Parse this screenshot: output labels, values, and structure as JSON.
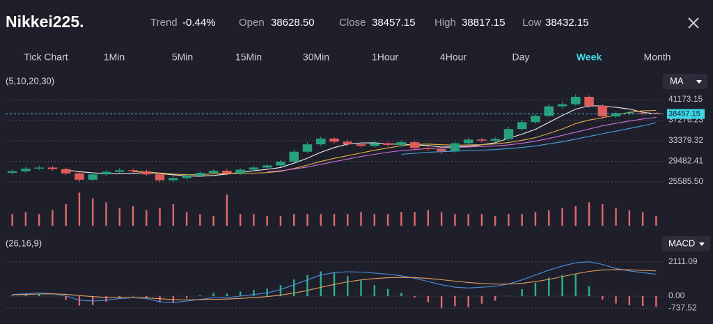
{
  "header": {
    "title": "Nikkei225.",
    "stats": [
      {
        "label": "Trend",
        "value": "-0.44%"
      },
      {
        "label": "Open",
        "value": "38628.50"
      },
      {
        "label": "Close",
        "value": "38457.15"
      },
      {
        "label": "High",
        "value": "38817.15"
      },
      {
        "label": "Low",
        "value": "38432.15"
      }
    ]
  },
  "timeframes": [
    "Tick Chart",
    "1Min",
    "5Min",
    "15Min",
    "30Min",
    "1Hour",
    "4Hour",
    "Day",
    "Week",
    "Month"
  ],
  "active_timeframe": "Week",
  "chart_data": [
    {
      "type": "candlestick",
      "label": "(5,10,20,30)",
      "indicator": "MA",
      "up_color": "#26a17b",
      "down_color": "#e25b5b",
      "open": [
        27300,
        27600,
        28100,
        28300,
        28000,
        27200,
        26000,
        27000,
        27500,
        27800,
        27600,
        27000,
        25900,
        26300,
        26800,
        27300,
        27700,
        27200,
        27900,
        28300,
        28700,
        29400,
        31300,
        32700,
        33800,
        33200,
        32700,
        32400,
        32900,
        32600,
        33100,
        32000,
        31800,
        31400,
        32900,
        33600,
        33400,
        33700,
        35600,
        36900,
        38100,
        39900,
        40300,
        41700,
        40000,
        38000,
        38600,
        38700,
        38628.5
      ],
      "high": [
        27900,
        28500,
        28700,
        28600,
        28300,
        27500,
        27400,
        27800,
        28200,
        28100,
        27900,
        27300,
        26700,
        27100,
        27600,
        28000,
        28100,
        28200,
        28600,
        29000,
        29800,
        31700,
        33100,
        34200,
        34100,
        33600,
        33100,
        33300,
        33200,
        33500,
        33400,
        32400,
        32300,
        33200,
        34000,
        33900,
        34100,
        36000,
        37300,
        38500,
        40400,
        40800,
        42200,
        42000,
        40300,
        39000,
        39100,
        39000,
        38817.15
      ],
      "low": [
        27000,
        27300,
        27800,
        27700,
        26900,
        25600,
        25700,
        26700,
        27200,
        27300,
        26700,
        25500,
        25600,
        26000,
        26500,
        27000,
        26800,
        26900,
        27600,
        28000,
        28400,
        29100,
        31000,
        32400,
        32800,
        32300,
        32000,
        32100,
        32200,
        32300,
        31600,
        31400,
        30800,
        31100,
        32600,
        33000,
        33100,
        33400,
        35300,
        36600,
        37800,
        39500,
        40000,
        39600,
        37500,
        37700,
        38200,
        38200,
        38432.15
      ],
      "close": [
        27600,
        28100,
        28300,
        28000,
        27200,
        26000,
        27000,
        27500,
        27800,
        27600,
        27000,
        25900,
        26300,
        26800,
        27300,
        27700,
        27200,
        27900,
        28300,
        28700,
        29400,
        31300,
        32700,
        33800,
        33200,
        32700,
        32400,
        32900,
        32600,
        33100,
        32000,
        31800,
        31400,
        32900,
        33600,
        33400,
        33700,
        35600,
        36900,
        38100,
        39900,
        40300,
        41700,
        40000,
        38000,
        38600,
        38700,
        38600,
        38457.15
      ],
      "series": [
        {
          "color": "#f2f2f2",
          "values": [
            null,
            null,
            null,
            null,
            27840,
            27520,
            27300,
            27140,
            27100,
            27180,
            27380,
            27160,
            26920,
            26720,
            26660,
            26800,
            27060,
            27380,
            27680,
            27960,
            28300,
            29120,
            30080,
            31180,
            32080,
            32740,
            32960,
            33000,
            32760,
            32740,
            32600,
            32480,
            32180,
            32240,
            32340,
            32620,
            33000,
            33840,
            34640,
            35540,
            36840,
            38160,
            39380,
            40000,
            39980,
            39720,
            39400,
            38780,
            38471
          ]
        },
        {
          "color": "#e8b04a",
          "values": [
            null,
            null,
            null,
            null,
            null,
            null,
            null,
            null,
            null,
            27530,
            27470,
            27260,
            27060,
            26940,
            26950,
            27120,
            27140,
            27180,
            27230,
            27340,
            27580,
            28120,
            28760,
            29460,
            30050,
            30550,
            31070,
            31570,
            32000,
            32440,
            32700,
            32750,
            32620,
            32530,
            32570,
            32640,
            32770,
            33040,
            33470,
            33970,
            34760,
            35610,
            36640,
            37300,
            37740,
            38260,
            38760,
            39050,
            39120
          ]
        },
        {
          "color": "#c86fd8",
          "values": [
            null,
            null,
            null,
            null,
            null,
            null,
            null,
            null,
            null,
            null,
            null,
            null,
            null,
            null,
            null,
            null,
            null,
            null,
            null,
            27500,
            27700,
            28000,
            28400,
            28900,
            29400,
            29900,
            30400,
            30800,
            31200,
            31500,
            31700,
            31900,
            32000,
            32100,
            32200,
            32300,
            32400,
            32600,
            32900,
            33300,
            33800,
            34400,
            35000,
            35600,
            36200,
            36700,
            37100,
            37500,
            37800
          ]
        },
        {
          "color": "#4aa3e0",
          "values": [
            null,
            null,
            null,
            null,
            null,
            null,
            null,
            null,
            null,
            null,
            null,
            null,
            null,
            null,
            null,
            null,
            null,
            null,
            null,
            null,
            null,
            null,
            null,
            null,
            null,
            null,
            null,
            null,
            null,
            30800,
            31000,
            31200,
            31300,
            31400,
            31500,
            31600,
            31700,
            31900,
            32100,
            32400,
            32800,
            33200,
            33700,
            34200,
            34700,
            35200,
            35700,
            36200,
            36800
          ]
        }
      ],
      "last": 38457.15,
      "last_color": "#3fd6e6",
      "ylim": [
        24660,
        43155
      ],
      "yticks": [
        41173.15,
        37276.23,
        33379.32,
        29482.41,
        {
          "value": 25585.5,
          "label": "25585.50"
        }
      ],
      "grid": true
    },
    {
      "type": "bar",
      "color": "#e06a6a",
      "values": [
        30,
        35,
        30,
        40,
        55,
        85,
        70,
        60,
        45,
        50,
        40,
        45,
        55,
        35,
        30,
        25,
        80,
        30,
        30,
        25,
        25,
        30,
        30,
        30,
        30,
        30,
        35,
        30,
        30,
        35,
        35,
        40,
        35,
        30,
        30,
        30,
        25,
        30,
        30,
        35,
        40,
        45,
        50,
        60,
        55,
        45,
        40,
        35,
        25
      ],
      "ylim": [
        0,
        100
      ]
    },
    {
      "type": "macd",
      "label": "(26,16,9)",
      "indicator": "MACD",
      "series": [
        {
          "color": "#4a8fe0",
          "values": [
            100,
            150,
            200,
            150,
            0,
            -250,
            -300,
            -250,
            -150,
            -100,
            -150,
            -350,
            -400,
            -300,
            -200,
            -100,
            -100,
            0,
            100,
            200,
            400,
            700,
            1000,
            1300,
            1450,
            1500,
            1480,
            1420,
            1350,
            1250,
            1100,
            900,
            700,
            550,
            500,
            550,
            600,
            750,
            1000,
            1300,
            1600,
            1850,
            2050,
            2111.09,
            1950,
            1700,
            1550,
            1450,
            1350
          ]
        },
        {
          "color": "#e0a060",
          "values": [
            80,
            100,
            130,
            140,
            110,
            40,
            -30,
            -80,
            -100,
            -100,
            -110,
            -160,
            -210,
            -230,
            -220,
            -200,
            -180,
            -140,
            -90,
            -30,
            60,
            190,
            350,
            540,
            720,
            880,
            1000,
            1080,
            1130,
            1150,
            1140,
            1090,
            1010,
            920,
            840,
            780,
            740,
            740,
            790,
            890,
            1030,
            1200,
            1370,
            1520,
            1610,
            1630,
            1620,
            1590,
            1550
          ]
        }
      ],
      "histogram": [
        40,
        100,
        140,
        20,
        -220,
        -580,
        -540,
        -340,
        -100,
        0,
        -80,
        -380,
        -380,
        -140,
        40,
        200,
        160,
        280,
        380,
        460,
        680,
        1020,
        1300,
        1520,
        1460,
        1240,
        960,
        680,
        440,
        200,
        -80,
        -380,
        -737.52,
        -620,
        -680,
        -460,
        -280,
        20,
        420,
        820,
        1140,
        1300,
        1360,
        600,
        -200,
        -450,
        -560,
        -600,
        -650
      ],
      "positive_color": "#2bb38a",
      "negative_color": "#e06a6a",
      "ylim": [
        -1500,
        2700
      ],
      "yticks": [
        2111.09,
        {
          "value": 0,
          "label": "0.00"
        },
        -737.52
      ],
      "grid": true
    }
  ]
}
